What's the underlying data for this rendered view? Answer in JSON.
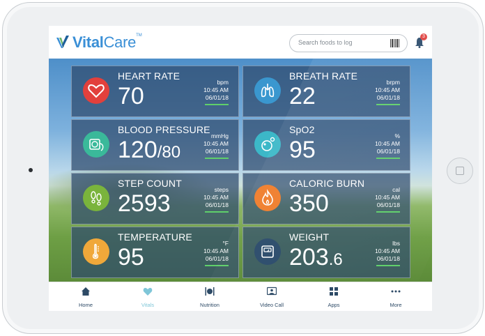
{
  "app": {
    "brand": "VitalCare",
    "brand_tm": "TM"
  },
  "header": {
    "search_placeholder": "Search foods to log",
    "notification_count": "3",
    "icons": [
      "barcode-icon",
      "bell-icon"
    ]
  },
  "metrics": [
    {
      "label": "HEART RATE",
      "value": "70",
      "value_small": "",
      "unit": "bpm",
      "time": "10:45 AM",
      "date": "06/01/18",
      "icon": "heart-icon",
      "color": "#e2403c"
    },
    {
      "label": "BREATH RATE",
      "value": "22",
      "value_small": "",
      "unit": "brpm",
      "time": "10:45 AM",
      "date": "06/01/18",
      "icon": "lungs-icon",
      "color": "#3a97cf"
    },
    {
      "label": "BLOOD PRESSURE",
      "value": "120",
      "value_small": "/80",
      "unit": "mmHg",
      "time": "10:45 AM",
      "date": "06/01/18",
      "icon": "bp-monitor-icon",
      "color": "#3ab99a"
    },
    {
      "label": "SpO2",
      "value": "95",
      "value_small": "",
      "unit": "%",
      "time": "10:45 AM",
      "date": "06/01/18",
      "icon": "oxygen-icon",
      "color": "#3cb8c8"
    },
    {
      "label": "STEP COUNT",
      "value": "2593",
      "value_small": "",
      "unit": "steps",
      "time": "10:45 AM",
      "date": "06/01/18",
      "icon": "footsteps-icon",
      "color": "#7ab43c"
    },
    {
      "label": "CALORIC BURN",
      "value": "350",
      "value_small": "",
      "unit": "cal",
      "time": "10:45 AM",
      "date": "06/01/18",
      "icon": "flame-icon",
      "color": "#ef7d2b"
    },
    {
      "label": "TEMPERATURE",
      "value": "95",
      "value_small": "",
      "unit": "°F",
      "time": "10:45 AM",
      "date": "06/01/18",
      "icon": "thermometer-icon",
      "color": "#f0a83a"
    },
    {
      "label": "WEIGHT",
      "value": "203",
      "value_small": ".6",
      "unit": "lbs",
      "time": "10:45 AM",
      "date": "06/01/18",
      "icon": "scale-icon",
      "color": "#2b4b6b"
    }
  ],
  "tabs": [
    {
      "label": "Home",
      "icon": "home-icon"
    },
    {
      "label": "Vitals",
      "icon": "heart-icon"
    },
    {
      "label": "Nutrition",
      "icon": "utensils-icon"
    },
    {
      "label": "Video Call",
      "icon": "video-call-icon"
    },
    {
      "label": "Apps",
      "icon": "apps-grid-icon"
    },
    {
      "label": "More",
      "icon": "more-dots-icon"
    }
  ]
}
